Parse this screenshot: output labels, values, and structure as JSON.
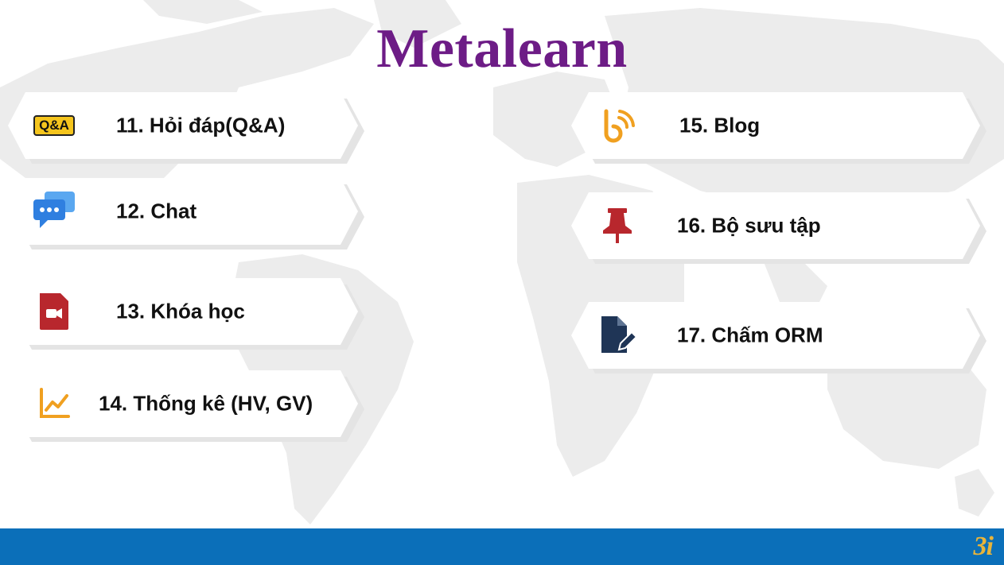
{
  "title": "Metalearn",
  "items_left": [
    {
      "label": "11. Hỏi đáp(Q&A)",
      "icon": "qa-icon",
      "icon_text": "Q&A"
    },
    {
      "label": "12. Chat",
      "icon": "chat-bubble-icon"
    },
    {
      "label": "13. Khóa học",
      "icon": "video-course-icon"
    },
    {
      "label": "14. Thống kê (HV, GV)",
      "icon": "line-chart-icon"
    }
  ],
  "items_right": [
    {
      "label": "15. Blog",
      "icon": "blog-rss-icon"
    },
    {
      "label": "16. Bộ sưu tập",
      "icon": "pushpin-icon"
    },
    {
      "label": "17. Chấm ORM",
      "icon": "document-edit-icon"
    }
  ],
  "footer": {
    "logo": "3i"
  },
  "colors": {
    "title": "#6d1c86",
    "footer": "#0b6fb9",
    "logo": "#e8b43a"
  }
}
